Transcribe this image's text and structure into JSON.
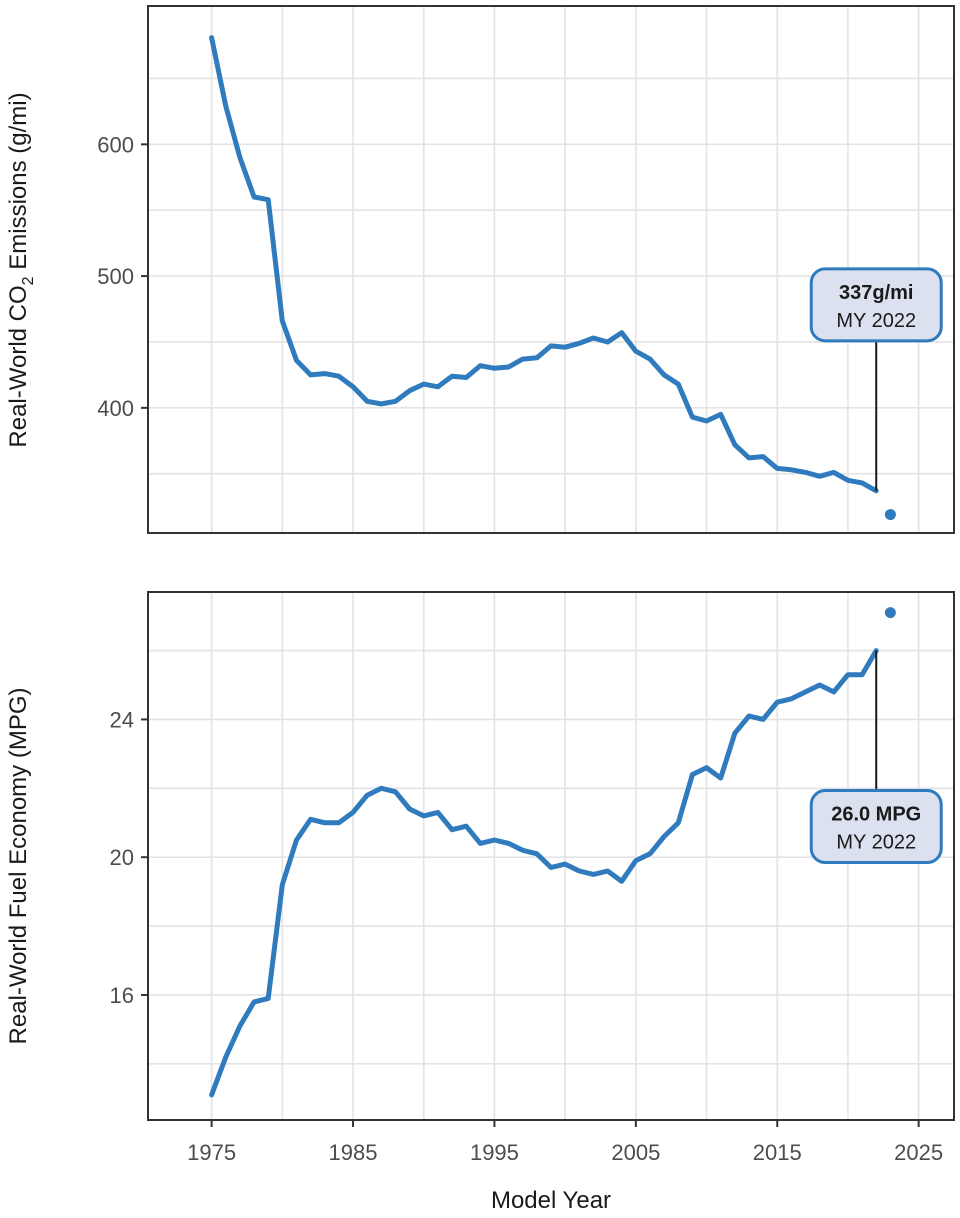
{
  "colors": {
    "series": "#2f7bbd",
    "annotation_fill": "#dbe1ef"
  },
  "x_axis": {
    "label": "Model Year",
    "lim": [
      1970.5,
      2027.5
    ],
    "ticks": [
      1975,
      1985,
      1995,
      2005,
      2015,
      2025
    ],
    "tick_labels": [
      "1975",
      "1985",
      "1995",
      "2005",
      "2015",
      "2025"
    ],
    "minor_ticks": [
      1980,
      1990,
      2000,
      2010,
      2020
    ]
  },
  "chart_data": [
    {
      "type": "line",
      "panel": "top",
      "title": "",
      "ylabel_main": "Real-World CO",
      "ylabel_subscript": "2",
      "ylabel_tail": " Emissions (g/mi)",
      "xlabel": "Model Year",
      "ylim": [
        305,
        705
      ],
      "y_ticks": [
        400,
        500,
        600
      ],
      "y_tick_labels": [
        "400",
        "500",
        "600"
      ],
      "minor_y_ticks": [
        350,
        450,
        550,
        650
      ],
      "x": [
        1975,
        1976,
        1977,
        1978,
        1979,
        1980,
        1981,
        1982,
        1983,
        1984,
        1985,
        1986,
        1987,
        1988,
        1989,
        1990,
        1991,
        1992,
        1993,
        1994,
        1995,
        1996,
        1997,
        1998,
        1999,
        2000,
        2001,
        2002,
        2003,
        2004,
        2005,
        2006,
        2007,
        2008,
        2009,
        2010,
        2011,
        2012,
        2013,
        2014,
        2015,
        2016,
        2017,
        2018,
        2019,
        2020,
        2021,
        2022
      ],
      "values": [
        681,
        629,
        590,
        560,
        558,
        466,
        436,
        425,
        426,
        424,
        416,
        405,
        403,
        405,
        413,
        418,
        416,
        424,
        423,
        432,
        430,
        431,
        437,
        438,
        447,
        446,
        449,
        453,
        450,
        457,
        443,
        437,
        425,
        418,
        393,
        390,
        395,
        372,
        362,
        363,
        354,
        353,
        351,
        348,
        351,
        345,
        343,
        337
      ],
      "preliminary": {
        "x": 2023,
        "value": 319
      },
      "annotation": {
        "value_label": "337g/mi",
        "year_label": "MY 2022",
        "x": 2022,
        "value": 337
      }
    },
    {
      "type": "line",
      "panel": "bottom",
      "title": "",
      "ylabel": "Real-World Fuel Economy (MPG)",
      "xlabel": "Model Year",
      "ylim": [
        12.37,
        27.7
      ],
      "y_ticks": [
        16,
        20,
        24
      ],
      "y_tick_labels": [
        "16",
        "20",
        "24"
      ],
      "minor_y_ticks": [
        14,
        18,
        22,
        26
      ],
      "x": [
        1975,
        1976,
        1977,
        1978,
        1979,
        1980,
        1981,
        1982,
        1983,
        1984,
        1985,
        1986,
        1987,
        1988,
        1989,
        1990,
        1991,
        1992,
        1993,
        1994,
        1995,
        1996,
        1997,
        1998,
        1999,
        2000,
        2001,
        2002,
        2003,
        2004,
        2005,
        2006,
        2007,
        2008,
        2009,
        2010,
        2011,
        2012,
        2013,
        2014,
        2015,
        2016,
        2017,
        2018,
        2019,
        2020,
        2021,
        2022
      ],
      "values": [
        13.1,
        14.2,
        15.1,
        15.8,
        15.9,
        19.2,
        20.5,
        21.1,
        21.0,
        21.0,
        21.3,
        21.8,
        22.0,
        21.9,
        21.4,
        21.2,
        21.3,
        20.8,
        20.9,
        20.4,
        20.5,
        20.4,
        20.2,
        20.1,
        19.7,
        19.8,
        19.6,
        19.5,
        19.6,
        19.3,
        19.9,
        20.1,
        20.6,
        21.0,
        22.4,
        22.6,
        22.3,
        23.6,
        24.1,
        24.0,
        24.5,
        24.6,
        24.8,
        25.0,
        24.8,
        25.3,
        25.3,
        26.0
      ],
      "preliminary": {
        "x": 2023,
        "value": 27.1
      },
      "annotation": {
        "value_label": "26.0 MPG",
        "year_label": "MY 2022",
        "x": 2022,
        "value": 26.0
      }
    }
  ]
}
